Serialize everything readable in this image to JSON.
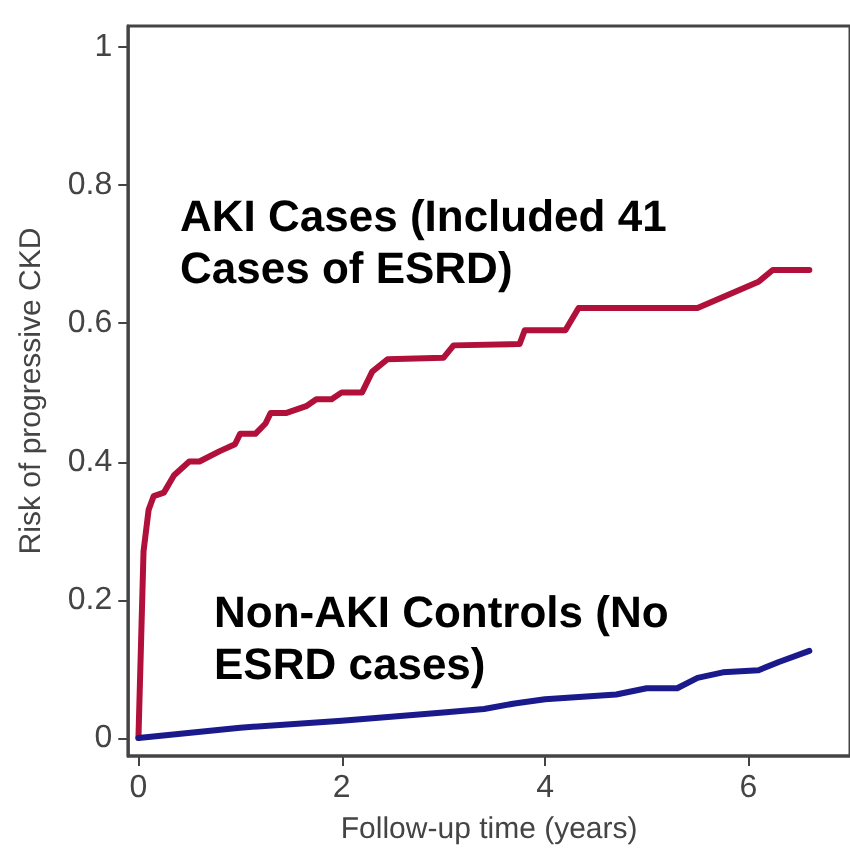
{
  "chart_data": {
    "type": "line",
    "xlabel": "Follow-up time (years)",
    "ylabel": "Risk of progressive CKD",
    "xlim": [
      -0.1,
      7
    ],
    "xticks": [
      0,
      2,
      4,
      6
    ],
    "ylim": [
      -0.026,
      1.03
    ],
    "yticks": [
      0,
      0.2,
      0.4,
      0.6,
      0.8,
      1
    ],
    "grid": false,
    "legend": false,
    "marker": "none",
    "line_style": "solid",
    "series": [
      {
        "name": "AKI Cases (Included 41 Cases of ESRD)",
        "color": "#b0103a",
        "x": [
          0,
          0.05,
          0.1,
          0.15,
          0.25,
          0.35,
          0.5,
          0.6,
          0.8,
          0.95,
          1.0,
          1.15,
          1.25,
          1.3,
          1.45,
          1.65,
          1.75,
          1.9,
          2.0,
          2.2,
          2.3,
          2.45,
          3.0,
          3.1,
          3.75,
          3.8,
          4.2,
          4.33,
          5.5,
          6.1,
          6.24,
          6.6
        ],
        "values": [
          0,
          0.27,
          0.33,
          0.35,
          0.355,
          0.38,
          0.4,
          0.4,
          0.415,
          0.425,
          0.44,
          0.44,
          0.455,
          0.47,
          0.47,
          0.48,
          0.49,
          0.49,
          0.5,
          0.5,
          0.53,
          0.548,
          0.55,
          0.568,
          0.57,
          0.59,
          0.59,
          0.622,
          0.622,
          0.66,
          0.677,
          0.677
        ]
      },
      {
        "name": "Non-AKI Controls (No ESRD cases)",
        "color": "#1a1a8c",
        "x": [
          0,
          1,
          2,
          3,
          3.4,
          3.7,
          4,
          4.7,
          5,
          5.3,
          5.5,
          5.75,
          6.1,
          6.3,
          6.6
        ],
        "values": [
          0,
          0.015,
          0.025,
          0.037,
          0.042,
          0.05,
          0.056,
          0.063,
          0.072,
          0.072,
          0.087,
          0.095,
          0.098,
          0.11,
          0.126
        ]
      }
    ]
  }
}
